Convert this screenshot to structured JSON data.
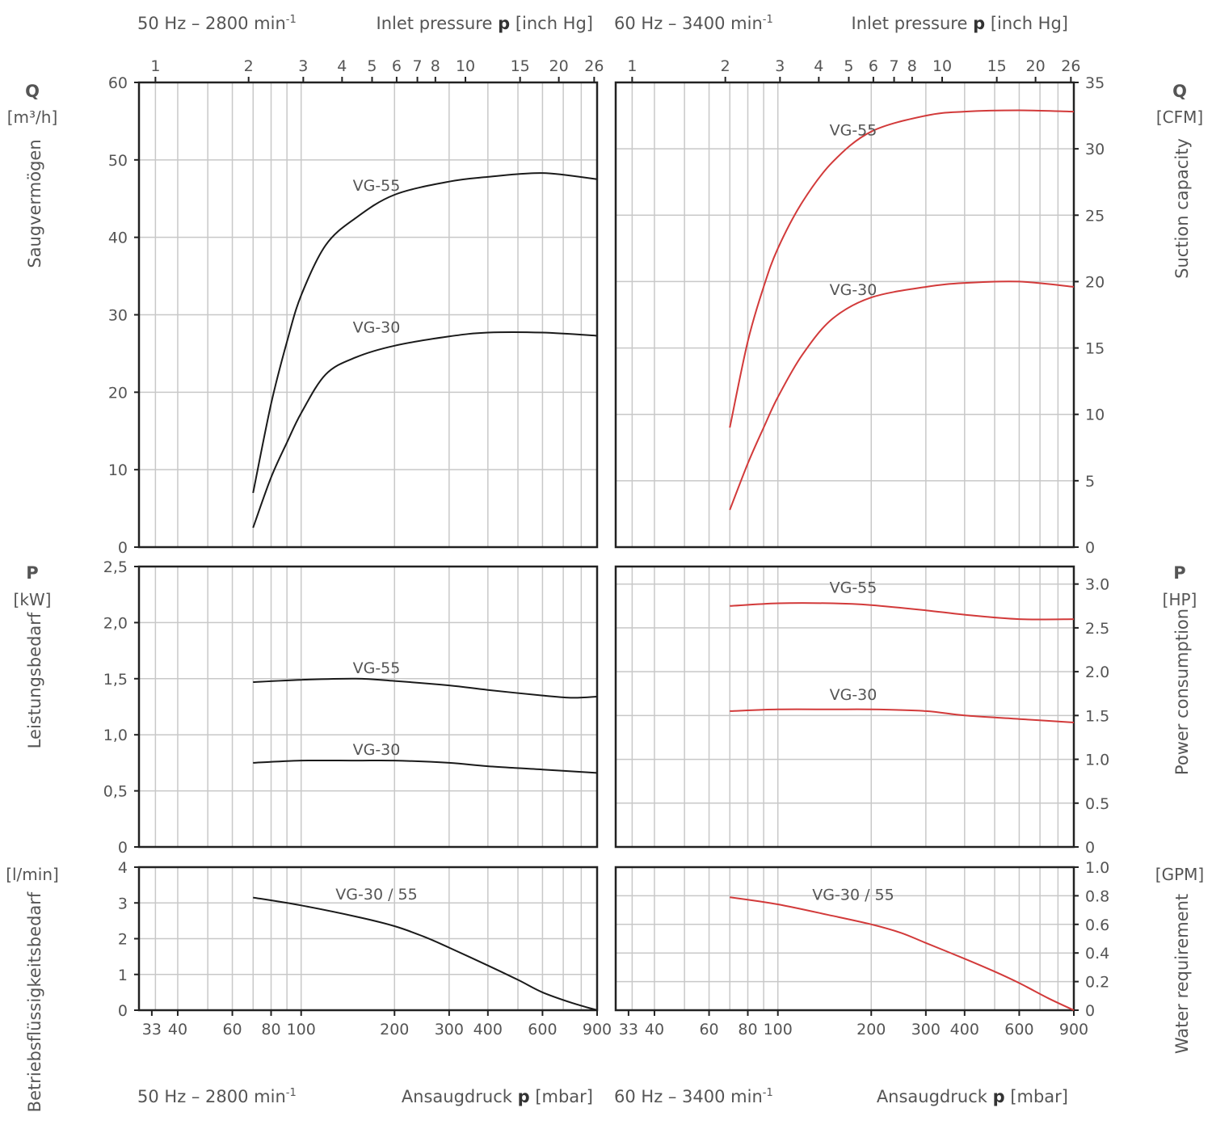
{
  "header": {
    "left_freq": "50 Hz – 2800 min",
    "left_freq_sup": "-1",
    "right_freq": "60 Hz – 3400 min",
    "right_freq_sup": "-1",
    "inlet_pressure_pre": "Inlet pressure ",
    "inlet_pressure_sym": "p",
    "inlet_pressure_unit": " [inch Hg]"
  },
  "footer": {
    "left_freq": "50 Hz – 2800 min",
    "left_freq_sup": "-1",
    "right_freq": "60 Hz – 3400 min",
    "right_freq_sup": "-1",
    "ansaug_pre": "Ansaugdruck ",
    "ansaug_sym": "p",
    "ansaug_unit": " [mbar]"
  },
  "left_labels": {
    "q_symbol": "Q",
    "q_unit": "[m³/h]",
    "q_name": "Saugvermögen",
    "p_symbol": "P",
    "p_unit": "[kW]",
    "p_name": "Leistungsbedarf",
    "w_unit": "[l/min]",
    "w_name": "Betriebsflüssigkeitsbedarf"
  },
  "right_labels": {
    "q_symbol": "Q",
    "q_unit": "[CFM]",
    "q_name": "Suction capacity",
    "p_symbol": "P",
    "p_unit": "[HP]",
    "p_name": "Power consumption",
    "w_unit": "[GPM]",
    "w_name": "Water requirement"
  },
  "colors": {
    "hz50": "#1a1a1a",
    "hz60": "#d23a3a",
    "grid": "#c8c8c8"
  },
  "chart_data": [
    {
      "type": "line",
      "panel": "suction-50hz",
      "x_scale": "log",
      "xlim": [
        30,
        900
      ],
      "ylim": [
        0,
        60
      ],
      "yticks": [
        0,
        10,
        20,
        30,
        40,
        50,
        60
      ],
      "series": [
        {
          "name": "VG-55",
          "x": [
            70,
            80,
            90,
            100,
            120,
            150,
            200,
            300,
            400,
            600,
            900
          ],
          "y": [
            7,
            18.5,
            26.5,
            32.5,
            39,
            42.5,
            45.5,
            47.2,
            47.8,
            48.3,
            47.5
          ]
        },
        {
          "name": "VG-30",
          "x": [
            70,
            80,
            90,
            100,
            120,
            150,
            200,
            300,
            400,
            600,
            900
          ],
          "y": [
            2.5,
            9,
            13.5,
            17.3,
            22.3,
            24.5,
            26,
            27.2,
            27.7,
            27.7,
            27.3
          ]
        }
      ]
    },
    {
      "type": "line",
      "panel": "power-50hz",
      "x_scale": "log",
      "xlim": [
        30,
        900
      ],
      "ylim": [
        0,
        2.5
      ],
      "yticks": [
        "0",
        "0,5",
        "1,0",
        "1,5",
        "2,0",
        "2,5"
      ],
      "series": [
        {
          "name": "VG-55",
          "x": [
            70,
            100,
            150,
            200,
            300,
            400,
            600,
            750,
            900
          ],
          "y": [
            1.47,
            1.49,
            1.5,
            1.48,
            1.44,
            1.4,
            1.35,
            1.33,
            1.34
          ]
        },
        {
          "name": "VG-30",
          "x": [
            70,
            100,
            150,
            200,
            300,
            400,
            600,
            900
          ],
          "y": [
            0.75,
            0.77,
            0.77,
            0.77,
            0.75,
            0.72,
            0.69,
            0.66
          ]
        }
      ]
    },
    {
      "type": "line",
      "panel": "water-50hz",
      "x_scale": "log",
      "xlim": [
        30,
        900
      ],
      "ylim": [
        0,
        4
      ],
      "yticks": [
        0,
        1,
        2,
        3,
        4
      ],
      "series": [
        {
          "name": "VG-30 / 55",
          "x": [
            70,
            100,
            150,
            200,
            250,
            300,
            400,
            500,
            600,
            750,
            900
          ],
          "y": [
            3.15,
            2.93,
            2.62,
            2.35,
            2.05,
            1.75,
            1.25,
            0.85,
            0.5,
            0.2,
            0
          ]
        }
      ]
    },
    {
      "type": "line",
      "panel": "suction-60hz",
      "x_scale": "log",
      "xlim": [
        30,
        900
      ],
      "ylim": [
        0,
        35
      ],
      "yticks": [
        0,
        5,
        10,
        15,
        20,
        25,
        30,
        35
      ],
      "series": [
        {
          "name": "VG-55",
          "x": [
            70,
            80,
            90,
            100,
            120,
            150,
            200,
            300,
            400,
            600,
            900
          ],
          "y": [
            9,
            15.5,
            19.6,
            22.5,
            26,
            29,
            31.3,
            32.5,
            32.8,
            32.9,
            32.8
          ]
        },
        {
          "name": "VG-30",
          "x": [
            70,
            80,
            90,
            100,
            120,
            150,
            200,
            300,
            400,
            600,
            900
          ],
          "y": [
            2.8,
            6.3,
            9,
            11.3,
            14.5,
            17.2,
            18.8,
            19.6,
            19.9,
            20,
            19.6
          ]
        }
      ]
    },
    {
      "type": "line",
      "panel": "power-60hz",
      "x_scale": "log",
      "xlim": [
        30,
        900
      ],
      "ylim": [
        0,
        3.2
      ],
      "yticks": [
        "0",
        "0.5",
        "1.0",
        "1.5",
        "2.0",
        "2.5",
        "3.0"
      ],
      "series": [
        {
          "name": "VG-55",
          "x": [
            70,
            100,
            150,
            200,
            300,
            400,
            600,
            900
          ],
          "y": [
            2.75,
            2.78,
            2.78,
            2.76,
            2.7,
            2.65,
            2.6,
            2.6
          ]
        },
        {
          "name": "VG-30",
          "x": [
            70,
            100,
            150,
            200,
            300,
            400,
            600,
            900
          ],
          "y": [
            1.55,
            1.57,
            1.57,
            1.57,
            1.55,
            1.5,
            1.46,
            1.42
          ]
        }
      ]
    },
    {
      "type": "line",
      "panel": "water-60hz",
      "x_scale": "log",
      "xlim": [
        30,
        900
      ],
      "ylim": [
        0,
        1.0
      ],
      "yticks": [
        "0",
        "0.2",
        "0.4",
        "0.6",
        "0.8",
        "1.0"
      ],
      "series": [
        {
          "name": "VG-30 / 55",
          "x": [
            70,
            100,
            150,
            200,
            250,
            300,
            400,
            500,
            600,
            750,
            900
          ],
          "y": [
            0.79,
            0.74,
            0.66,
            0.6,
            0.54,
            0.47,
            0.36,
            0.27,
            0.19,
            0.08,
            0
          ]
        }
      ]
    }
  ],
  "axis_ticks": {
    "inch_hg": [
      {
        "label": "1",
        "mbar": 33.9
      },
      {
        "label": "2",
        "mbar": 67.7
      },
      {
        "label": "3",
        "mbar": 101.6
      },
      {
        "label": "4",
        "mbar": 135.5
      },
      {
        "label": "5",
        "mbar": 169.3
      },
      {
        "label": "6",
        "mbar": 203.2
      },
      {
        "label": "7",
        "mbar": 237
      },
      {
        "label": "8",
        "mbar": 270.9
      },
      {
        "label": "10",
        "mbar": 338.6
      },
      {
        "label": "15",
        "mbar": 508
      },
      {
        "label": "20",
        "mbar": 677.3
      },
      {
        "label": "26",
        "mbar": 880.5
      }
    ],
    "mbar": [
      {
        "label": "33",
        "mbar": 33
      },
      {
        "label": "40",
        "mbar": 40
      },
      {
        "label": "60",
        "mbar": 60
      },
      {
        "label": "80",
        "mbar": 80
      },
      {
        "label": "100",
        "mbar": 100
      },
      {
        "label": "200",
        "mbar": 200
      },
      {
        "label": "300",
        "mbar": 300
      },
      {
        "label": "400",
        "mbar": 400
      },
      {
        "label": "600",
        "mbar": 600
      },
      {
        "label": "900",
        "mbar": 900
      }
    ],
    "gridlines_mbar": [
      33.9,
      40,
      50,
      60,
      70,
      80,
      90,
      100,
      200,
      300,
      400,
      500,
      600,
      700,
      800,
      900
    ]
  }
}
